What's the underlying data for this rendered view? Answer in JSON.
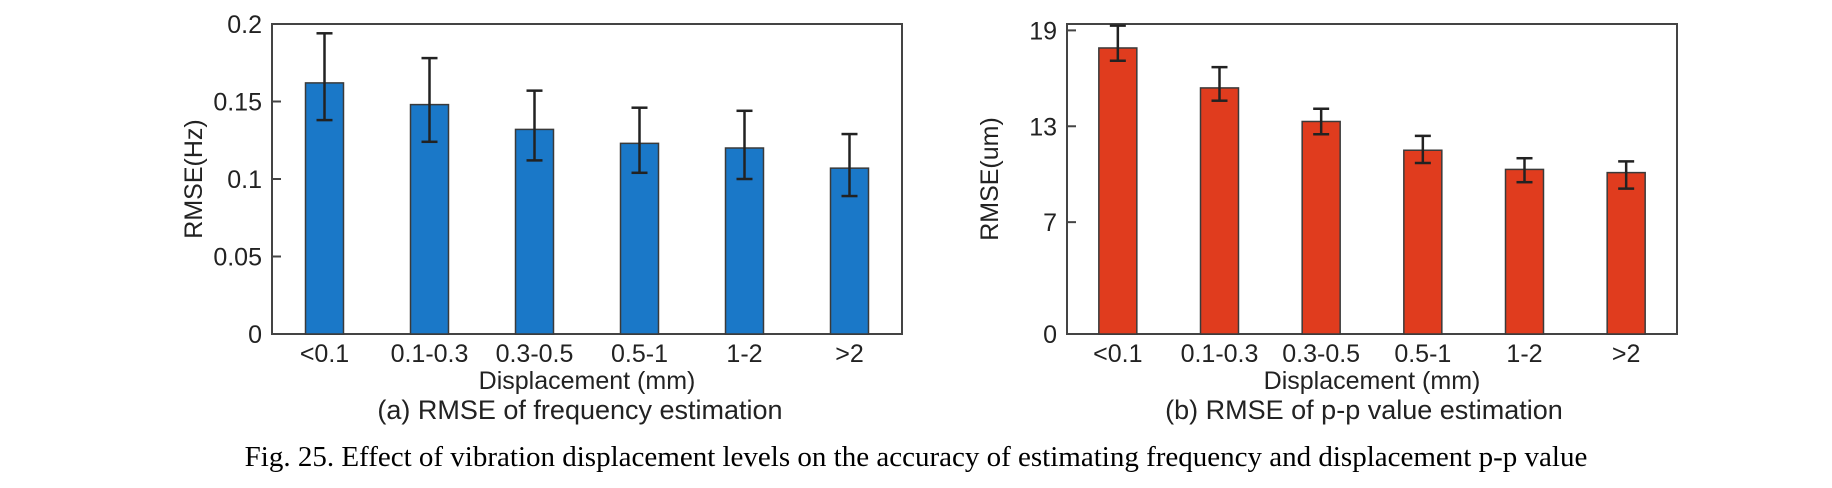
{
  "figure": {
    "caption": "Fig. 25.  Effect of vibration displacement levels on the accuracy of estimating frequency and displacement p-p value"
  },
  "chart_data": [
    {
      "type": "bar",
      "subcaption": "(a) RMSE of frequency estimation",
      "xlabel": "Displacement (mm)",
      "ylabel": "RMSE(Hz)",
      "categories": [
        "<0.1",
        "0.1-0.3",
        "0.3-0.5",
        "0.5-1",
        "1-2",
        ">2"
      ],
      "values": [
        0.162,
        0.148,
        0.132,
        0.123,
        0.12,
        0.107
      ],
      "error_low": [
        0.138,
        0.124,
        0.112,
        0.104,
        0.1,
        0.089
      ],
      "error_high": [
        0.194,
        0.178,
        0.157,
        0.146,
        0.144,
        0.129
      ],
      "ylim": [
        0,
        0.2
      ],
      "yticks": [
        0,
        0.05,
        0.1,
        0.15,
        0.2
      ],
      "ytick_labels": [
        "0",
        "0.05",
        "0.1",
        "0.15",
        "0.2"
      ],
      "color": "#1a78c8",
      "grid": false
    },
    {
      "type": "bar",
      "subcaption": "(b) RMSE of p-p value estimation",
      "xlabel": "Displacement (mm)",
      "ylabel": "RMSE(um)",
      "categories": [
        "<0.1",
        "0.1-0.3",
        "0.3-0.5",
        "0.5-1",
        "1-2",
        ">2"
      ],
      "values": [
        17.9,
        15.4,
        13.3,
        11.5,
        10.3,
        10.1
      ],
      "error_low": [
        17.1,
        14.6,
        12.5,
        10.7,
        9.5,
        9.1
      ],
      "error_high": [
        19.3,
        16.7,
        14.1,
        12.4,
        11.0,
        10.8
      ],
      "ylim": [
        0,
        19.4
      ],
      "yticks": [
        0,
        7,
        13,
        19
      ],
      "ytick_labels": [
        "0",
        "7",
        "13",
        "19"
      ],
      "color": "#e03c1e",
      "grid": false
    }
  ]
}
